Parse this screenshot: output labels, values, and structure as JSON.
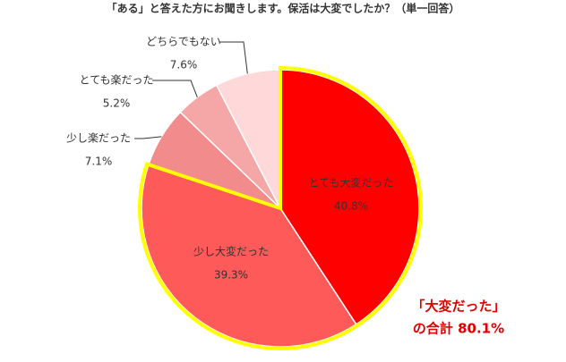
{
  "chart_data": {
    "type": "pie",
    "title": "「ある」と答えた方にお聞きします。保活は大変でしたか？（単一回答）",
    "categories": [
      "とても大変だった",
      "少し大変だった",
      "少し楽だった",
      "とても楽だった",
      "どちらでもない"
    ],
    "values": [
      40.8,
      39.3,
      7.1,
      5.2,
      7.6
    ],
    "value_labels": [
      "40.8%",
      "39.3%",
      "7.1%",
      "5.2%",
      "7.6%"
    ],
    "colors": [
      "#ff0000",
      "#ff5a5a",
      "#f28b8b",
      "#f5a6a6",
      "#ffd9d9"
    ],
    "annotations": [
      "「大変だった」",
      "の合計 80.1%"
    ]
  }
}
